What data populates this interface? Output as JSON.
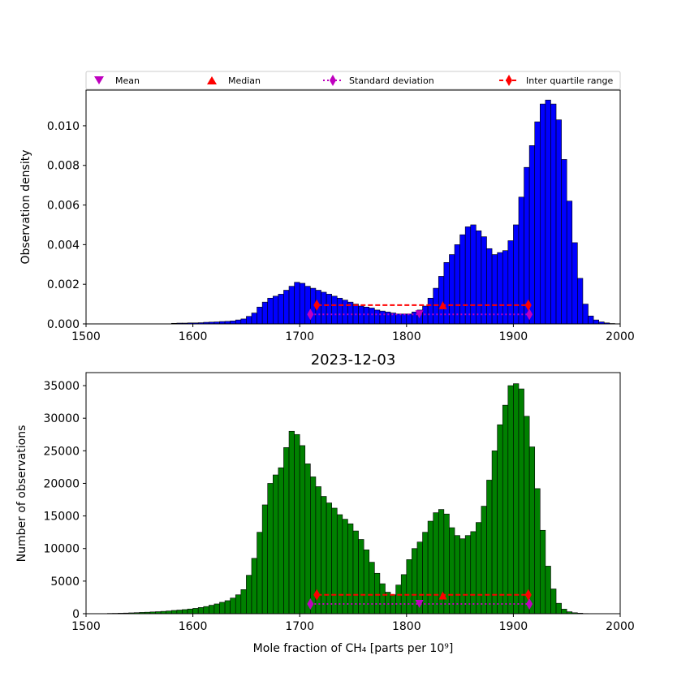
{
  "legend": {
    "items": [
      {
        "label": "Mean",
        "marker": "triangle-down",
        "color": "#bf00bf",
        "line": "none"
      },
      {
        "label": "Median",
        "marker": "triangle-up",
        "color": "#ff0000",
        "line": "none"
      },
      {
        "label": "Standard deviation",
        "marker": "diamond",
        "color": "#bf00bf",
        "line": "dotted"
      },
      {
        "label": "Inter quartile range",
        "marker": "diamond",
        "color": "#ff0000",
        "line": "dashed"
      }
    ]
  },
  "chart_data": [
    {
      "type": "bar",
      "title": "",
      "xlabel": "",
      "ylabel": "Observation density",
      "bar_color": "#0000ff",
      "xlim": [
        1500,
        2000
      ],
      "ylim": [
        0,
        0.0118
      ],
      "xticks": [
        "1500",
        "1600",
        "1700",
        "1800",
        "1900",
        "2000"
      ],
      "yticks": [
        "0.000",
        "0.002",
        "0.004",
        "0.006",
        "0.008",
        "0.010"
      ],
      "bin_start": 1520,
      "bin_width": 5,
      "values": [
        0,
        0,
        0,
        0,
        0,
        0,
        0,
        0,
        0,
        0,
        0,
        0,
        3e-05,
        4e-05,
        4e-05,
        5e-05,
        5e-05,
        6e-05,
        8e-05,
        9e-05,
        0.0001,
        0.00012,
        0.00013,
        0.00015,
        0.0002,
        0.00025,
        0.00038,
        0.00055,
        0.00085,
        0.0011,
        0.0013,
        0.0014,
        0.0015,
        0.0017,
        0.0019,
        0.0021,
        0.00205,
        0.0019,
        0.0018,
        0.0017,
        0.0016,
        0.0015,
        0.0014,
        0.0013,
        0.0012,
        0.0011,
        0.001,
        0.0009,
        0.00085,
        0.0008,
        0.0007,
        0.00065,
        0.0006,
        0.00055,
        0.0005,
        0.0005,
        0.0005,
        0.0006,
        0.0007,
        0.0009,
        0.0013,
        0.0018,
        0.0024,
        0.0031,
        0.0035,
        0.004,
        0.0045,
        0.0049,
        0.005,
        0.0047,
        0.0044,
        0.0038,
        0.0035,
        0.0036,
        0.0037,
        0.0042,
        0.005,
        0.0064,
        0.0079,
        0.009,
        0.0102,
        0.0111,
        0.0113,
        0.0111,
        0.0103,
        0.0083,
        0.0062,
        0.0041,
        0.0023,
        0.001,
        0.0004,
        0.0002,
        0.0001,
        5e-05,
        2e-05,
        0
      ]
    },
    {
      "type": "bar",
      "title": "2023-12-03",
      "xlabel": "Mole fraction of CH₄ [parts per 10⁹]",
      "ylabel": "Number of observations",
      "bar_color": "#008000",
      "xlim": [
        1500,
        2000
      ],
      "ylim": [
        0,
        37000
      ],
      "xticks": [
        "1500",
        "1600",
        "1700",
        "1800",
        "1900",
        "2000"
      ],
      "yticks": [
        "0",
        "5000",
        "10000",
        "15000",
        "20000",
        "25000",
        "30000",
        "35000"
      ],
      "bin_start": 1520,
      "bin_width": 5,
      "values": [
        50,
        60,
        80,
        100,
        130,
        160,
        200,
        230,
        270,
        310,
        360,
        420,
        500,
        560,
        630,
        720,
        820,
        950,
        1100,
        1300,
        1500,
        1750,
        2000,
        2400,
        2900,
        3700,
        5900,
        8500,
        12500,
        16700,
        20000,
        21300,
        22400,
        25500,
        28000,
        27500,
        25800,
        23000,
        21000,
        19500,
        18000,
        17000,
        16200,
        15200,
        14500,
        13800,
        12700,
        11400,
        9800,
        7900,
        6200,
        4600,
        3300,
        2900,
        4400,
        6000,
        8300,
        10000,
        11000,
        12500,
        14200,
        15500,
        16000,
        15300,
        13200,
        12000,
        11500,
        12000,
        12600,
        14000,
        16500,
        20500,
        25000,
        29000,
        32000,
        35000,
        35300,
        34500,
        30300,
        25600,
        19200,
        12800,
        7300,
        3800,
        1600,
        700,
        300,
        150,
        80,
        30
      ]
    }
  ],
  "stats": [
    {
      "mean": 1812,
      "median": 1834,
      "std_lo": 1710,
      "std_hi": 1915,
      "iqr_lo": 1716,
      "iqr_hi": 1914,
      "mean_y": 0.00048,
      "median_y": 0.00095,
      "std_y": 0.00048,
      "iqr_y": 0.00095
    },
    {
      "mean": 1812,
      "median": 1834,
      "std_lo": 1710,
      "std_hi": 1915,
      "iqr_lo": 1716,
      "iqr_hi": 1914,
      "mean_y": 1500,
      "median_y": 2800,
      "std_y": 1500,
      "iqr_y": 2900
    }
  ]
}
